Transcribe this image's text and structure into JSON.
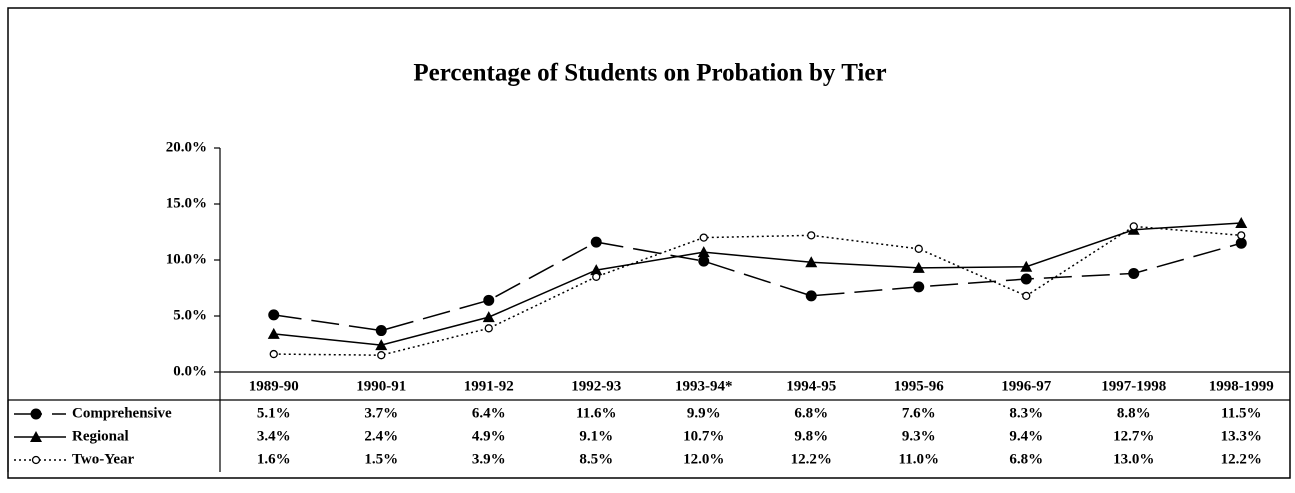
{
  "chart_data": {
    "type": "line",
    "title": "Percentage of Students on Probation by Tier",
    "categories": [
      "1989-90",
      "1990-91",
      "1991-92",
      "1992-93",
      "1993-94*",
      "1994-95",
      "1995-96",
      "1996-97",
      "1997-1998",
      "1998-1999"
    ],
    "series": [
      {
        "name": "Comprehensive",
        "color": "#000000",
        "dash": "long-dash",
        "marker": "filled-circle",
        "values": [
          5.1,
          3.7,
          6.4,
          11.6,
          9.9,
          6.8,
          7.6,
          8.3,
          8.8,
          11.5
        ],
        "value_labels": [
          "5.1%",
          "3.7%",
          "6.4%",
          "11.6%",
          "9.9%",
          "6.8%",
          "7.6%",
          "8.3%",
          "8.8%",
          "11.5%"
        ]
      },
      {
        "name": "Regional",
        "color": "#000000",
        "dash": "solid",
        "marker": "triangle",
        "values": [
          3.4,
          2.4,
          4.9,
          9.1,
          10.7,
          9.8,
          9.3,
          9.4,
          12.7,
          13.3
        ],
        "value_labels": [
          "3.4%",
          "2.4%",
          "4.9%",
          "9.1%",
          "10.7%",
          "9.8%",
          "9.3%",
          "9.4%",
          "12.7%",
          "13.3%"
        ]
      },
      {
        "name": "Two-Year",
        "color": "#000000",
        "dash": "dotted",
        "marker": "open-circle",
        "values": [
          1.6,
          1.5,
          3.9,
          8.5,
          12.0,
          12.2,
          11.0,
          6.8,
          13.0,
          12.2
        ],
        "value_labels": [
          "1.6%",
          "1.5%",
          "3.9%",
          "8.5%",
          "12.0%",
          "12.2%",
          "11.0%",
          "6.8%",
          "13.0%",
          "12.2%"
        ]
      }
    ],
    "ylim": [
      0,
      20
    ],
    "yticks": [
      {
        "value": 0,
        "label": "0.0%"
      },
      {
        "value": 5,
        "label": "5.0%"
      },
      {
        "value": 10,
        "label": "10.0%"
      },
      {
        "value": 15,
        "label": "15.0%"
      },
      {
        "value": 20,
        "label": "20.0%"
      }
    ],
    "grid": false
  }
}
